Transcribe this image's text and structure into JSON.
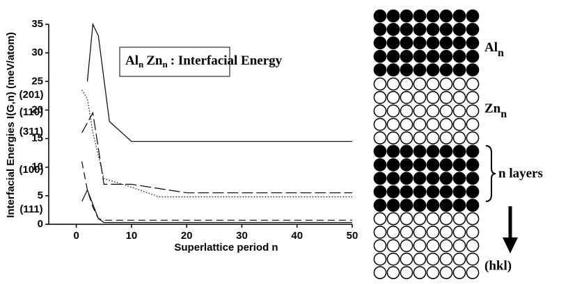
{
  "chart_data": {
    "type": "line",
    "annotation": [
      "Al",
      "n",
      "Zn",
      "n",
      ": Interfacial Energy"
    ],
    "xlabel": "Superlattice period n",
    "ylabel": "Interfacial Energies I(G,n) (meV/atom)",
    "xlim": [
      -5,
      50
    ],
    "xticks": [
      0,
      10,
      20,
      30,
      40,
      50
    ],
    "ylim": [
      0,
      35
    ],
    "yticks": [
      0,
      5,
      10,
      15,
      20,
      25,
      30,
      35
    ],
    "series": [
      {
        "name": "(201)",
        "color": "#000000",
        "style": "solid",
        "x": [
          2,
          3,
          4,
          6,
          10,
          50
        ],
        "values": [
          25,
          35,
          33,
          18,
          14.5,
          14.5
        ]
      },
      {
        "name": "(110)",
        "color": "#000000",
        "style": "dotted",
        "x": [
          1,
          2,
          3,
          4,
          5,
          10,
          15,
          50
        ],
        "values": [
          23.5,
          22,
          16,
          12,
          8,
          6.5,
          4.8,
          4.8
        ]
      },
      {
        "name": "(311)",
        "color": "#000000",
        "style": "longdash",
        "x": [
          1,
          3,
          5,
          10,
          20,
          50
        ],
        "values": [
          16,
          19.5,
          7,
          7,
          5.5,
          5.5
        ]
      },
      {
        "name": "(100)",
        "color": "#000000",
        "style": "dashed",
        "x": [
          1,
          2,
          3,
          4,
          5,
          10,
          50
        ],
        "values": [
          11,
          6,
          3,
          1,
          0.7,
          0.7,
          0.7
        ]
      },
      {
        "name": "(111)",
        "color": "#000000",
        "style": "solid",
        "x": [
          1,
          2,
          4,
          5,
          10,
          50
        ],
        "values": [
          4,
          6,
          1,
          0.3,
          0.3,
          0.3
        ]
      }
    ]
  },
  "diagram": {
    "top_label": [
      "Al",
      "n"
    ],
    "middle_label": [
      "Zn",
      "n"
    ],
    "bracket_label": "n layers",
    "arrow_label": "(hkl)"
  }
}
